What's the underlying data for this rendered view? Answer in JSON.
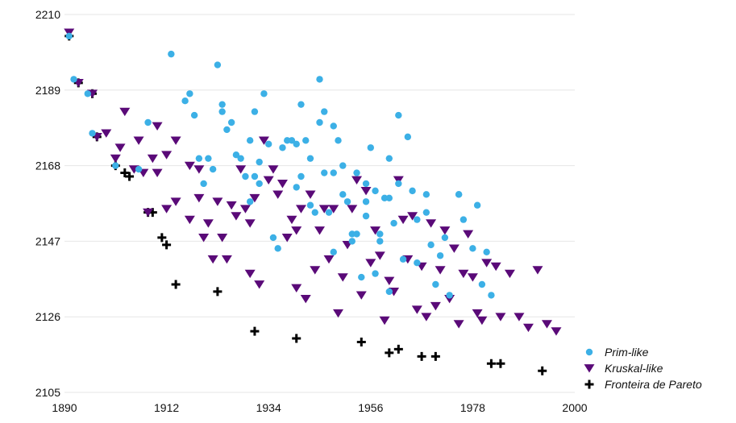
{
  "chart_data": {
    "type": "scatter",
    "title": "",
    "xlabel": "",
    "ylabel": "",
    "xlim": [
      1890,
      2000
    ],
    "ylim": [
      2105,
      2210
    ],
    "x_ticks": [
      "1890",
      "1912",
      "1934",
      "1956",
      "1978",
      "2000"
    ],
    "y_ticks": [
      "2210",
      "2189",
      "2168",
      "2147",
      "2126",
      "2105"
    ],
    "grid": "horizontal",
    "legend_position": "bottom-right",
    "colors": {
      "prim": "#3cb0e6",
      "kruskal": "#5a0a78",
      "pareto": "#000000"
    },
    "series": [
      {
        "name": "Prim-like",
        "marker": "circle",
        "points": [
          [
            1891,
            2204
          ],
          [
            1895,
            2188
          ],
          [
            1908,
            2180
          ],
          [
            1918,
            2182
          ],
          [
            1931,
            2183
          ],
          [
            1941,
            2165
          ],
          [
            1948,
            2166
          ],
          [
            1955,
            2158
          ],
          [
            1960,
            2159
          ],
          [
            1968,
            2160
          ],
          [
            1975,
            2160
          ],
          [
            1892,
            2192
          ],
          [
            1896,
            2177
          ],
          [
            1901,
            2168
          ],
          [
            1906,
            2167
          ],
          [
            1913,
            2199
          ],
          [
            1916,
            2186
          ],
          [
            1917,
            2188
          ],
          [
            1919,
            2170
          ],
          [
            1920,
            2163
          ],
          [
            1921,
            2170
          ],
          [
            1922,
            2167
          ],
          [
            1923,
            2196
          ],
          [
            1924,
            2183
          ],
          [
            1924,
            2185
          ],
          [
            1925,
            2178
          ],
          [
            1926,
            2180
          ],
          [
            1927,
            2171
          ],
          [
            1928,
            2170
          ],
          [
            1929,
            2165
          ],
          [
            1930,
            2175
          ],
          [
            1930,
            2158
          ],
          [
            1931,
            2165
          ],
          [
            1932,
            2169
          ],
          [
            1932,
            2163
          ],
          [
            1933,
            2188
          ],
          [
            1934,
            2174
          ],
          [
            1935,
            2148
          ],
          [
            1936,
            2145
          ],
          [
            1937,
            2173
          ],
          [
            1938,
            2175
          ],
          [
            1939,
            2175
          ],
          [
            1940,
            2162
          ],
          [
            1940,
            2174
          ],
          [
            1941,
            2185
          ],
          [
            1942,
            2175
          ],
          [
            1943,
            2157
          ],
          [
            1943,
            2170
          ],
          [
            1944,
            2155
          ],
          [
            1945,
            2180
          ],
          [
            1945,
            2192
          ],
          [
            1946,
            2183
          ],
          [
            1946,
            2166
          ],
          [
            1947,
            2155
          ],
          [
            1948,
            2144
          ],
          [
            1948,
            2179
          ],
          [
            1949,
            2175
          ],
          [
            1950,
            2160
          ],
          [
            1950,
            2168
          ],
          [
            1951,
            2158
          ],
          [
            1952,
            2147
          ],
          [
            1952,
            2149
          ],
          [
            1953,
            2149
          ],
          [
            1953,
            2166
          ],
          [
            1954,
            2137
          ],
          [
            1955,
            2163
          ],
          [
            1955,
            2154
          ],
          [
            1956,
            2173
          ],
          [
            1957,
            2161
          ],
          [
            1957,
            2138
          ],
          [
            1958,
            2149
          ],
          [
            1958,
            2147
          ],
          [
            1959,
            2159
          ],
          [
            1960,
            2170
          ],
          [
            1960,
            2133
          ],
          [
            1961,
            2152
          ],
          [
            1962,
            2182
          ],
          [
            1962,
            2163
          ],
          [
            1963,
            2142
          ],
          [
            1964,
            2176
          ],
          [
            1965,
            2161
          ],
          [
            1966,
            2141
          ],
          [
            1966,
            2153
          ],
          [
            1968,
            2155
          ],
          [
            1969,
            2146
          ],
          [
            1970,
            2135
          ],
          [
            1971,
            2143
          ],
          [
            1972,
            2148
          ],
          [
            1973,
            2132
          ],
          [
            1975,
            2160
          ],
          [
            1976,
            2153
          ],
          [
            1978,
            2145
          ],
          [
            1979,
            2157
          ],
          [
            1980,
            2135
          ],
          [
            1981,
            2144
          ],
          [
            1982,
            2132
          ]
        ]
      },
      {
        "name": "Kruskal-like",
        "marker": "triangle-down",
        "points": [
          [
            1891,
            2205
          ],
          [
            1893,
            2191
          ],
          [
            1896,
            2188
          ],
          [
            1899,
            2177
          ],
          [
            1903,
            2183
          ],
          [
            1906,
            2175
          ],
          [
            1907,
            2166
          ],
          [
            1909,
            2170
          ],
          [
            1910,
            2166
          ],
          [
            1912,
            2171
          ],
          [
            1914,
            2158
          ],
          [
            1917,
            2153
          ],
          [
            1919,
            2167
          ],
          [
            1897,
            2176
          ],
          [
            1901,
            2170
          ],
          [
            1902,
            2173
          ],
          [
            1905,
            2167
          ],
          [
            1908,
            2155
          ],
          [
            1910,
            2179
          ],
          [
            1912,
            2156
          ],
          [
            1914,
            2175
          ],
          [
            1917,
            2168
          ],
          [
            1919,
            2159
          ],
          [
            1920,
            2148
          ],
          [
            1921,
            2152
          ],
          [
            1922,
            2142
          ],
          [
            1923,
            2158
          ],
          [
            1924,
            2148
          ],
          [
            1925,
            2142
          ],
          [
            1926,
            2157
          ],
          [
            1927,
            2154
          ],
          [
            1928,
            2167
          ],
          [
            1929,
            2156
          ],
          [
            1930,
            2138
          ],
          [
            1930,
            2152
          ],
          [
            1931,
            2159
          ],
          [
            1932,
            2135
          ],
          [
            1933,
            2175
          ],
          [
            1934,
            2164
          ],
          [
            1935,
            2167
          ],
          [
            1936,
            2160
          ],
          [
            1937,
            2163
          ],
          [
            1938,
            2148
          ],
          [
            1939,
            2153
          ],
          [
            1940,
            2134
          ],
          [
            1940,
            2150
          ],
          [
            1941,
            2156
          ],
          [
            1942,
            2131
          ],
          [
            1943,
            2160
          ],
          [
            1944,
            2139
          ],
          [
            1945,
            2150
          ],
          [
            1946,
            2156
          ],
          [
            1947,
            2142
          ],
          [
            1948,
            2156
          ],
          [
            1949,
            2127
          ],
          [
            1950,
            2137
          ],
          [
            1951,
            2146
          ],
          [
            1952,
            2156
          ],
          [
            1953,
            2164
          ],
          [
            1954,
            2132
          ],
          [
            1955,
            2161
          ],
          [
            1956,
            2141
          ],
          [
            1957,
            2150
          ],
          [
            1958,
            2143
          ],
          [
            1959,
            2125
          ],
          [
            1960,
            2136
          ],
          [
            1961,
            2133
          ],
          [
            1962,
            2164
          ],
          [
            1963,
            2153
          ],
          [
            1964,
            2142
          ],
          [
            1965,
            2154
          ],
          [
            1966,
            2128
          ],
          [
            1967,
            2140
          ],
          [
            1968,
            2126
          ],
          [
            1969,
            2152
          ],
          [
            1970,
            2129
          ],
          [
            1971,
            2139
          ],
          [
            1972,
            2150
          ],
          [
            1973,
            2131
          ],
          [
            1974,
            2145
          ],
          [
            1975,
            2124
          ],
          [
            1976,
            2138
          ],
          [
            1977,
            2149
          ],
          [
            1978,
            2137
          ],
          [
            1979,
            2127
          ],
          [
            1980,
            2125
          ],
          [
            1981,
            2141
          ],
          [
            1983,
            2140
          ],
          [
            1984,
            2126
          ],
          [
            1986,
            2138
          ],
          [
            1988,
            2126
          ],
          [
            1990,
            2123
          ],
          [
            1992,
            2139
          ],
          [
            1994,
            2124
          ],
          [
            1996,
            2122
          ]
        ]
      },
      {
        "name": "Fronteira de Pareto",
        "marker": "plus",
        "points": [
          [
            1891,
            2204
          ],
          [
            1893,
            2191
          ],
          [
            1896,
            2188
          ],
          [
            1897,
            2176
          ],
          [
            1901,
            2168
          ],
          [
            1903,
            2166
          ],
          [
            1904,
            2165
          ],
          [
            1908,
            2155
          ],
          [
            1909,
            2155
          ],
          [
            1911,
            2148
          ],
          [
            1912,
            2146
          ],
          [
            1914,
            2135
          ],
          [
            1923,
            2133
          ],
          [
            1931,
            2122
          ],
          [
            1940,
            2120
          ],
          [
            1954,
            2119
          ],
          [
            1960,
            2116
          ],
          [
            1962,
            2117
          ],
          [
            1967,
            2115
          ],
          [
            1970,
            2115
          ],
          [
            1982,
            2113
          ],
          [
            1984,
            2113
          ],
          [
            1993,
            2111
          ]
        ]
      }
    ]
  }
}
